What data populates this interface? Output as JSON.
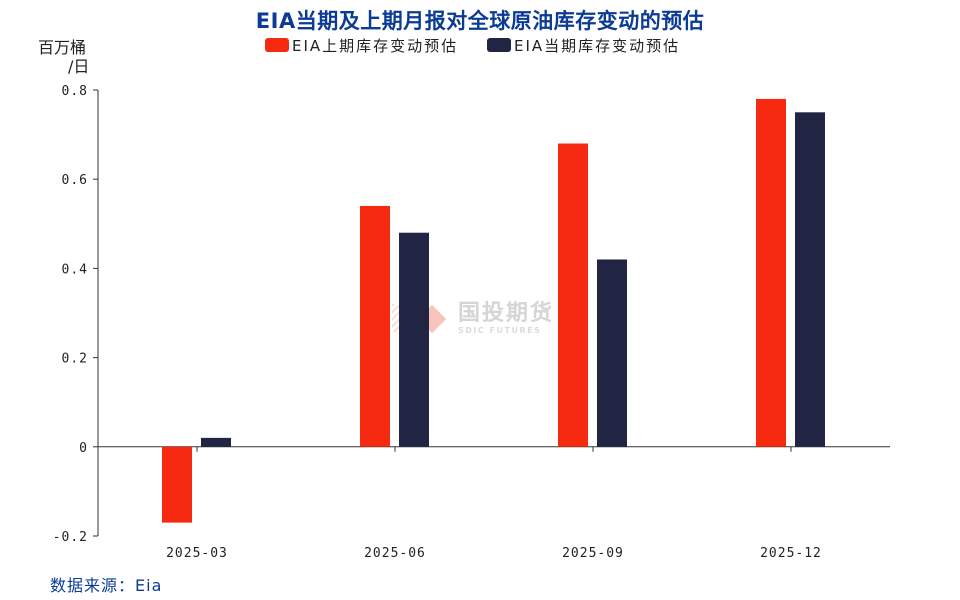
{
  "chart_data": {
    "type": "bar",
    "title": "EIA当期及上期月报对全球原油库存变动的预估",
    "ylabel": "百万桶/日",
    "ylabel_lines": [
      "百万桶",
      "/日"
    ],
    "xlabel": "",
    "categories": [
      "2025-03",
      "2025-06",
      "2025-09",
      "2025-12"
    ],
    "series": [
      {
        "name": "EIA上期库存变动预估",
        "legend_text": "EIA上期库存变动预估",
        "color": "#f52a10",
        "values": [
          -0.17,
          0.54,
          0.68,
          0.78
        ]
      },
      {
        "name": "EIA当期库存变动预估",
        "legend_text": "EIA当期库存变动预估",
        "color": "#212543",
        "values": [
          0.02,
          0.48,
          0.42,
          0.75
        ]
      }
    ],
    "ylim": [
      -0.2,
      0.8
    ],
    "yticks": [
      -0.2,
      0,
      0.2,
      0.4,
      0.6,
      0.8
    ],
    "ytick_labels": [
      "-0.2",
      "0",
      "0.2",
      "0.4",
      "0.6",
      "0.8"
    ],
    "legend_position": "top-center",
    "grid": false
  },
  "source": {
    "label": "数据来源：",
    "value": "Eia"
  },
  "watermark": {
    "name": "国投期货",
    "subtitle": "SDIC FUTURES"
  }
}
